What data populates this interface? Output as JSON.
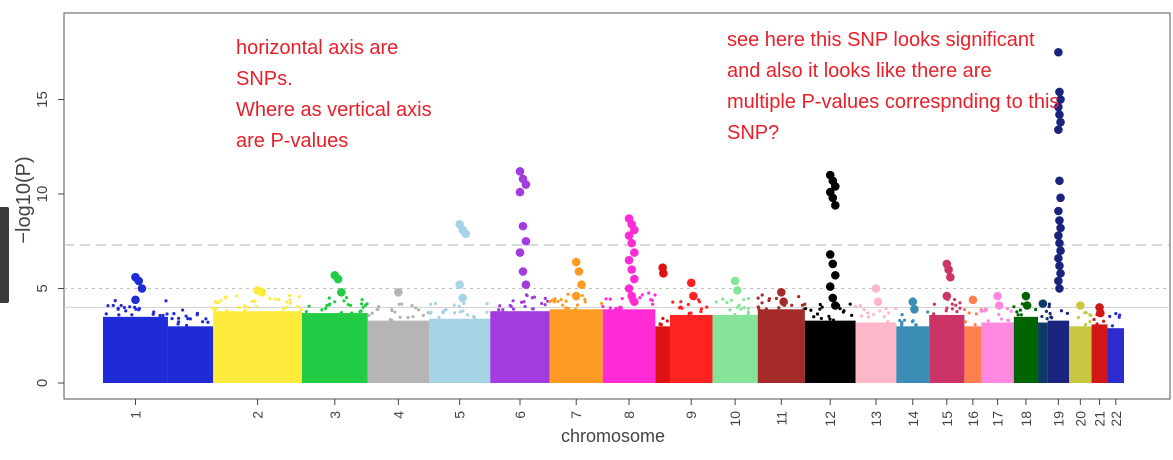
{
  "chart_data": {
    "type": "scatter",
    "title": "",
    "xlabel": "chromosome",
    "ylabel": "−log10(P)",
    "ylim": [
      0,
      19
    ],
    "yticks": [
      0,
      5,
      10,
      15
    ],
    "grid": false,
    "legend": "none",
    "threshold_lines": [
      {
        "value": 7.3,
        "style": "dashed"
      },
      {
        "value": 5.0,
        "style": "dotted"
      },
      {
        "value": 4.0,
        "style": "solid-light"
      }
    ],
    "chromosomes": [
      {
        "label": "1",
        "start": 0.0,
        "end": 14.2,
        "color": "#1f2bd6",
        "base": 3.5,
        "hits": [
          5.6,
          5.4,
          5.0,
          4.4
        ]
      },
      {
        "label": "",
        "start": 14.2,
        "end": 24.1,
        "color": "#1f2bd6",
        "base": 3.0,
        "hits": []
      },
      {
        "label": "2",
        "start": 24.1,
        "end": 43.5,
        "color": "#ffeb3b",
        "base": 3.8,
        "hits": [
          4.9,
          4.8
        ]
      },
      {
        "label": "3",
        "start": 43.5,
        "end": 57.9,
        "color": "#22cc44",
        "base": 3.7,
        "hits": [
          5.7,
          5.5,
          4.8
        ]
      },
      {
        "label": "4",
        "start": 57.9,
        "end": 71.3,
        "color": "#b5b5b5",
        "base": 3.3,
        "hits": [
          4.8
        ]
      },
      {
        "label": "5",
        "start": 71.3,
        "end": 84.7,
        "color": "#a7d3e6",
        "base": 3.4,
        "hits": [
          8.4,
          8.1,
          7.9,
          5.2,
          4.5
        ]
      },
      {
        "label": "6",
        "start": 84.7,
        "end": 97.7,
        "color": "#a23be0",
        "base": 3.8,
        "hits": [
          11.2,
          10.8,
          10.5,
          10.1,
          8.3,
          7.5,
          6.9,
          5.9,
          5.2
        ]
      },
      {
        "label": "7",
        "start": 97.7,
        "end": 109.3,
        "color": "#ff9a22",
        "base": 3.9,
        "hits": [
          6.4,
          5.9,
          5.2,
          4.6
        ]
      },
      {
        "label": "8",
        "start": 109.3,
        "end": 120.8,
        "color": "#ff2bd5",
        "base": 3.9,
        "hits": [
          8.7,
          8.4,
          8.1,
          7.8,
          7.4,
          6.9,
          6.5,
          6.0,
          5.5,
          5.0,
          4.6,
          4.3
        ]
      },
      {
        "label": "",
        "start": 120.8,
        "end": 124.0,
        "color": "#dd1111",
        "base": 3.0,
        "hits": [
          6.1,
          5.8
        ]
      },
      {
        "label": "9",
        "start": 124.0,
        "end": 133.3,
        "color": "#ff2222",
        "base": 3.6,
        "hits": [
          5.3,
          4.6
        ]
      },
      {
        "label": "10",
        "start": 133.3,
        "end": 143.2,
        "color": "#86e39a",
        "base": 3.6,
        "hits": [
          5.4,
          4.9
        ]
      },
      {
        "label": "11",
        "start": 143.2,
        "end": 153.5,
        "color": "#a52a2a",
        "base": 3.9,
        "hits": [
          4.8,
          4.3
        ]
      },
      {
        "label": "12",
        "start": 153.5,
        "end": 164.6,
        "color": "#000000",
        "base": 3.3,
        "hits": [
          11.0,
          10.7,
          10.4,
          10.1,
          9.8,
          9.4,
          6.8,
          6.3,
          5.7,
          5.1,
          4.5,
          4.1
        ]
      },
      {
        "label": "13",
        "start": 164.6,
        "end": 173.5,
        "color": "#ffb7c9",
        "base": 3.2,
        "hits": [
          5.0,
          4.3
        ]
      },
      {
        "label": "14",
        "start": 173.5,
        "end": 180.7,
        "color": "#3c8db5",
        "base": 3.0,
        "hits": [
          4.3,
          3.9
        ]
      },
      {
        "label": "15",
        "start": 180.7,
        "end": 188.4,
        "color": "#cc3366",
        "base": 3.6,
        "hits": [
          6.3,
          6.0,
          5.6,
          4.6
        ]
      },
      {
        "label": "16",
        "start": 188.4,
        "end": 192.1,
        "color": "#ff7f50",
        "base": 3.0,
        "hits": [
          4.4
        ]
      },
      {
        "label": "17",
        "start": 192.1,
        "end": 199.2,
        "color": "#ff88e0",
        "base": 3.2,
        "hits": [
          4.6,
          4.1
        ]
      },
      {
        "label": "18",
        "start": 199.2,
        "end": 204.5,
        "color": "#006400",
        "base": 3.5,
        "hits": [
          4.6,
          4.1
        ]
      },
      {
        "label": "",
        "start": 204.5,
        "end": 206.6,
        "color": "#0d3b66",
        "base": 3.2,
        "hits": [
          4.2
        ]
      },
      {
        "label": "19",
        "start": 206.6,
        "end": 211.3,
        "color": "#1a237e",
        "base": 3.3,
        "hits": [
          17.5,
          15.4,
          15.0,
          14.6,
          14.2,
          13.8,
          13.4,
          10.7,
          9.8,
          9.1,
          8.6,
          8.2,
          7.8,
          7.4,
          7.0,
          6.6,
          6.2,
          5.8,
          5.4,
          5.0
        ]
      },
      {
        "label": "20",
        "start": 211.3,
        "end": 216.2,
        "color": "#c7c742",
        "base": 3.0,
        "hits": [
          4.1
        ]
      },
      {
        "label": "21",
        "start": 216.2,
        "end": 219.7,
        "color": "#d01818",
        "base": 3.1,
        "hits": [
          4.0,
          3.7
        ]
      },
      {
        "label": "22",
        "start": 219.7,
        "end": 223.3,
        "color": "#2b2bd0",
        "base": 2.9,
        "hits": []
      }
    ]
  },
  "annotations": {
    "left": [
      "horizontal axis are",
      "SNPs.",
      "Where as vertical axis",
      "are P-values"
    ],
    "right": [
      "see here this SNP looks significant",
      "and also it looks like there are",
      "multiple P-values correspnding to this",
      "SNP?"
    ]
  }
}
